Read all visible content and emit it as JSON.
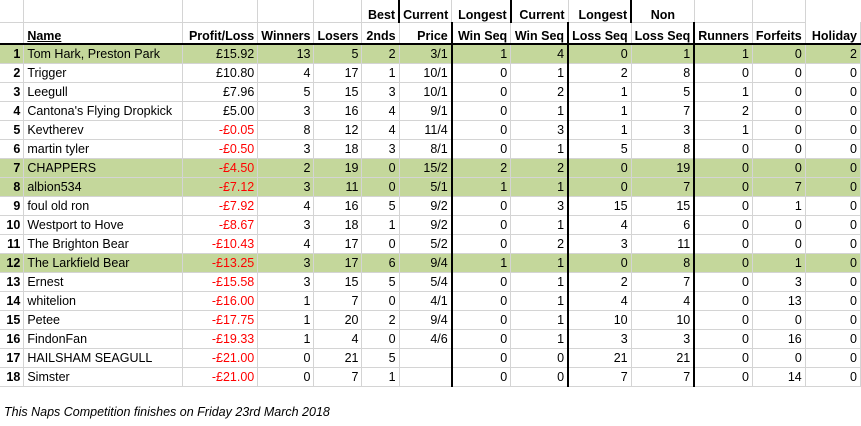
{
  "headers": {
    "row1": {
      "best": "Best",
      "current_win": "Current",
      "longest_win": "Longest",
      "current_loss": "Current",
      "longest_loss": "Longest",
      "non": "Non"
    },
    "row2": {
      "name": "Name",
      "profit": "Profit/Loss",
      "winners": "Winners",
      "losers": "Losers",
      "seconds": "2nds",
      "price": "Price",
      "win_seq": "Win Seq",
      "win_seq2": "Win Seq",
      "loss_seq": "Loss Seq",
      "loss_seq2": "Loss Seq",
      "runners": "Runners",
      "forfeits": "Forfeits",
      "holiday": "Holiday"
    }
  },
  "rows": [
    {
      "rank": "1",
      "name": "Tom Hark, Preston Park",
      "profit": "£15.92",
      "winners": "13",
      "losers": "5",
      "seconds": "2",
      "price": "3/1",
      "cws": "1",
      "lws": "4",
      "cls": "0",
      "lls": "1",
      "nr": "1",
      "ff": "0",
      "hol": "2",
      "highlight": true,
      "neg": false
    },
    {
      "rank": "2",
      "name": "Trigger",
      "profit": "£10.80",
      "winners": "4",
      "losers": "17",
      "seconds": "1",
      "price": "10/1",
      "cws": "0",
      "lws": "1",
      "cls": "2",
      "lls": "8",
      "nr": "0",
      "ff": "0",
      "hol": "0",
      "highlight": false,
      "neg": false
    },
    {
      "rank": "3",
      "name": "Leegull",
      "profit": "£7.96",
      "winners": "5",
      "losers": "15",
      "seconds": "3",
      "price": "10/1",
      "cws": "0",
      "lws": "2",
      "cls": "1",
      "lls": "5",
      "nr": "1",
      "ff": "0",
      "hol": "0",
      "highlight": false,
      "neg": false
    },
    {
      "rank": "4",
      "name": "Cantona's Flying Dropkick",
      "profit": "£5.00",
      "winners": "3",
      "losers": "16",
      "seconds": "4",
      "price": "9/1",
      "cws": "0",
      "lws": "1",
      "cls": "1",
      "lls": "7",
      "nr": "2",
      "ff": "0",
      "hol": "0",
      "highlight": false,
      "neg": false
    },
    {
      "rank": "5",
      "name": "Kevtherev",
      "profit": "-£0.05",
      "winners": "8",
      "losers": "12",
      "seconds": "4",
      "price": "11/4",
      "cws": "0",
      "lws": "3",
      "cls": "1",
      "lls": "3",
      "nr": "1",
      "ff": "0",
      "hol": "0",
      "highlight": false,
      "neg": true
    },
    {
      "rank": "6",
      "name": "martin tyler",
      "profit": "-£0.50",
      "winners": "3",
      "losers": "18",
      "seconds": "3",
      "price": "8/1",
      "cws": "0",
      "lws": "1",
      "cls": "5",
      "lls": "8",
      "nr": "0",
      "ff": "0",
      "hol": "0",
      "highlight": false,
      "neg": true
    },
    {
      "rank": "7",
      "name": "CHAPPERS",
      "profit": "-£4.50",
      "winners": "2",
      "losers": "19",
      "seconds": "0",
      "price": "15/2",
      "cws": "2",
      "lws": "2",
      "cls": "0",
      "lls": "19",
      "nr": "0",
      "ff": "0",
      "hol": "0",
      "highlight": true,
      "neg": true
    },
    {
      "rank": "8",
      "name": "albion534",
      "profit": "-£7.12",
      "winners": "3",
      "losers": "11",
      "seconds": "0",
      "price": "5/1",
      "cws": "1",
      "lws": "1",
      "cls": "0",
      "lls": "7",
      "nr": "0",
      "ff": "7",
      "hol": "0",
      "highlight": true,
      "neg": true
    },
    {
      "rank": "9",
      "name": "foul old ron",
      "profit": "-£7.92",
      "winners": "4",
      "losers": "16",
      "seconds": "5",
      "price": "9/2",
      "cws": "0",
      "lws": "3",
      "cls": "15",
      "lls": "15",
      "nr": "0",
      "ff": "1",
      "hol": "0",
      "highlight": false,
      "neg": true
    },
    {
      "rank": "10",
      "name": "Westport to Hove",
      "profit": "-£8.67",
      "winners": "3",
      "losers": "18",
      "seconds": "1",
      "price": "9/2",
      "cws": "0",
      "lws": "1",
      "cls": "4",
      "lls": "6",
      "nr": "0",
      "ff": "0",
      "hol": "0",
      "highlight": false,
      "neg": true
    },
    {
      "rank": "11",
      "name": "The Brighton Bear",
      "profit": "-£10.43",
      "winners": "4",
      "losers": "17",
      "seconds": "0",
      "price": "5/2",
      "cws": "0",
      "lws": "2",
      "cls": "3",
      "lls": "11",
      "nr": "0",
      "ff": "0",
      "hol": "0",
      "highlight": false,
      "neg": true
    },
    {
      "rank": "12",
      "name": "The Larkfield Bear",
      "profit": "-£13.25",
      "winners": "3",
      "losers": "17",
      "seconds": "6",
      "price": "9/4",
      "cws": "1",
      "lws": "1",
      "cls": "0",
      "lls": "8",
      "nr": "0",
      "ff": "1",
      "hol": "0",
      "highlight": true,
      "neg": true
    },
    {
      "rank": "13",
      "name": "Ernest",
      "profit": "-£15.58",
      "winners": "3",
      "losers": "15",
      "seconds": "5",
      "price": "5/4",
      "cws": "0",
      "lws": "1",
      "cls": "2",
      "lls": "7",
      "nr": "0",
      "ff": "3",
      "hol": "0",
      "highlight": false,
      "neg": true
    },
    {
      "rank": "14",
      "name": "whitelion",
      "profit": "-£16.00",
      "winners": "1",
      "losers": "7",
      "seconds": "0",
      "price": "4/1",
      "cws": "0",
      "lws": "1",
      "cls": "4",
      "lls": "4",
      "nr": "0",
      "ff": "13",
      "hol": "0",
      "highlight": false,
      "neg": true
    },
    {
      "rank": "15",
      "name": "Petee",
      "profit": "-£17.75",
      "winners": "1",
      "losers": "20",
      "seconds": "2",
      "price": "9/4",
      "cws": "0",
      "lws": "1",
      "cls": "10",
      "lls": "10",
      "nr": "0",
      "ff": "0",
      "hol": "0",
      "highlight": false,
      "neg": true
    },
    {
      "rank": "16",
      "name": "FindonFan",
      "profit": "-£19.33",
      "winners": "1",
      "losers": "4",
      "seconds": "0",
      "price": "4/6",
      "cws": "0",
      "lws": "1",
      "cls": "3",
      "lls": "3",
      "nr": "0",
      "ff": "16",
      "hol": "0",
      "highlight": false,
      "neg": true
    },
    {
      "rank": "17",
      "name": "HAILSHAM SEAGULL",
      "profit": "-£21.00",
      "winners": "0",
      "losers": "21",
      "seconds": "5",
      "price": "",
      "cws": "0",
      "lws": "0",
      "cls": "21",
      "lls": "21",
      "nr": "0",
      "ff": "0",
      "hol": "0",
      "highlight": false,
      "neg": true
    },
    {
      "rank": "18",
      "name": "Simster",
      "profit": "-£21.00",
      "winners": "0",
      "losers": "7",
      "seconds": "1",
      "price": "",
      "cws": "0",
      "lws": "0",
      "cls": "7",
      "lls": "7",
      "nr": "0",
      "ff": "14",
      "hol": "0",
      "highlight": false,
      "neg": true
    }
  ],
  "footer": "This Naps Competition finishes on Friday 23rd March 2018",
  "colors": {
    "highlight": "#c4d79b",
    "negative": "#ff0000"
  }
}
